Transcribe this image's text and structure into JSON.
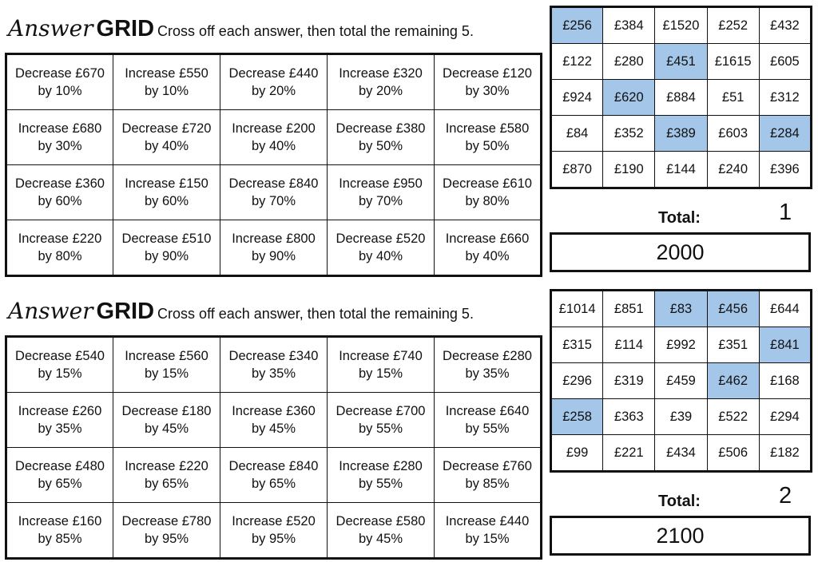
{
  "grids": [
    {
      "title_script": "Answer",
      "title_bold": "GRID",
      "instruction": "Cross off each answer, then total the remaining 5.",
      "questions": [
        [
          "Decrease £670|by 10%",
          "Increase £550|by 10%",
          "Decrease £440|by 20%",
          "Increase £320|by 20%",
          "Decrease £120|by 30%"
        ],
        [
          "Increase £680|by 30%",
          "Decrease £720|by 40%",
          "Increase £200|by 40%",
          "Decrease £380|by 50%",
          "Increase £580|by 50%"
        ],
        [
          "Decrease £360|by 60%",
          "Increase £150|by 60%",
          "Decrease £840|by 70%",
          "Increase £950|by 70%",
          "Decrease £610|by 80%"
        ],
        [
          "Increase £220|by 80%",
          "Decrease £510|by 90%",
          "Increase £800|by 90%",
          "Decrease £520|by 40%",
          "Increase £660|by 40%"
        ]
      ],
      "answers": [
        [
          "£256",
          "£384",
          "£1520",
          "£252",
          "£432"
        ],
        [
          "£122",
          "£280",
          "£451",
          "£1615",
          "£605"
        ],
        [
          "£924",
          "£620",
          "£884",
          "£51",
          "£312"
        ],
        [
          "£84",
          "£352",
          "£389",
          "£603",
          "£284"
        ],
        [
          "£870",
          "£190",
          "£144",
          "£240",
          "£396"
        ]
      ],
      "highlighted": [
        [
          0,
          0
        ],
        [
          1,
          2
        ],
        [
          2,
          1
        ],
        [
          3,
          2
        ],
        [
          3,
          4
        ]
      ],
      "total_label": "Total:",
      "grid_number": "1",
      "total_value": "2000"
    },
    {
      "title_script": "Answer",
      "title_bold": "GRID",
      "instruction": "Cross off each answer, then total the remaining 5.",
      "questions": [
        [
          "Decrease £540|by 15%",
          "Increase £560|by 15%",
          "Decrease £340|by 35%",
          "Increase £740|by 15%",
          "Decrease £280|by 35%"
        ],
        [
          "Increase £260|by 35%",
          "Decrease £180|by 45%",
          "Increase £360|by 45%",
          "Decrease £700|by 55%",
          "Increase £640|by 55%"
        ],
        [
          "Decrease £480|by 65%",
          "Increase £220|by 65%",
          "Decrease £840|by 65%",
          "Increase £280|by 55%",
          "Decrease £760|by 85%"
        ],
        [
          "Increase £160|by 85%",
          "Decrease £780|by 95%",
          "Increase £520|by 95%",
          "Decrease £580|by 45%",
          "Increase £440|by 15%"
        ]
      ],
      "answers": [
        [
          "£1014",
          "£851",
          "£83",
          "£456",
          "£644"
        ],
        [
          "£315",
          "£114",
          "£992",
          "£351",
          "£841"
        ],
        [
          "£296",
          "£319",
          "£459",
          "£462",
          "£168"
        ],
        [
          "£258",
          "£363",
          "£39",
          "£522",
          "£294"
        ],
        [
          "£99",
          "£221",
          "£434",
          "£506",
          "£182"
        ]
      ],
      "highlighted": [
        [
          0,
          2
        ],
        [
          0,
          3
        ],
        [
          1,
          4
        ],
        [
          2,
          3
        ],
        [
          3,
          0
        ]
      ],
      "total_label": "Total:",
      "grid_number": "2",
      "total_value": "2100"
    }
  ]
}
